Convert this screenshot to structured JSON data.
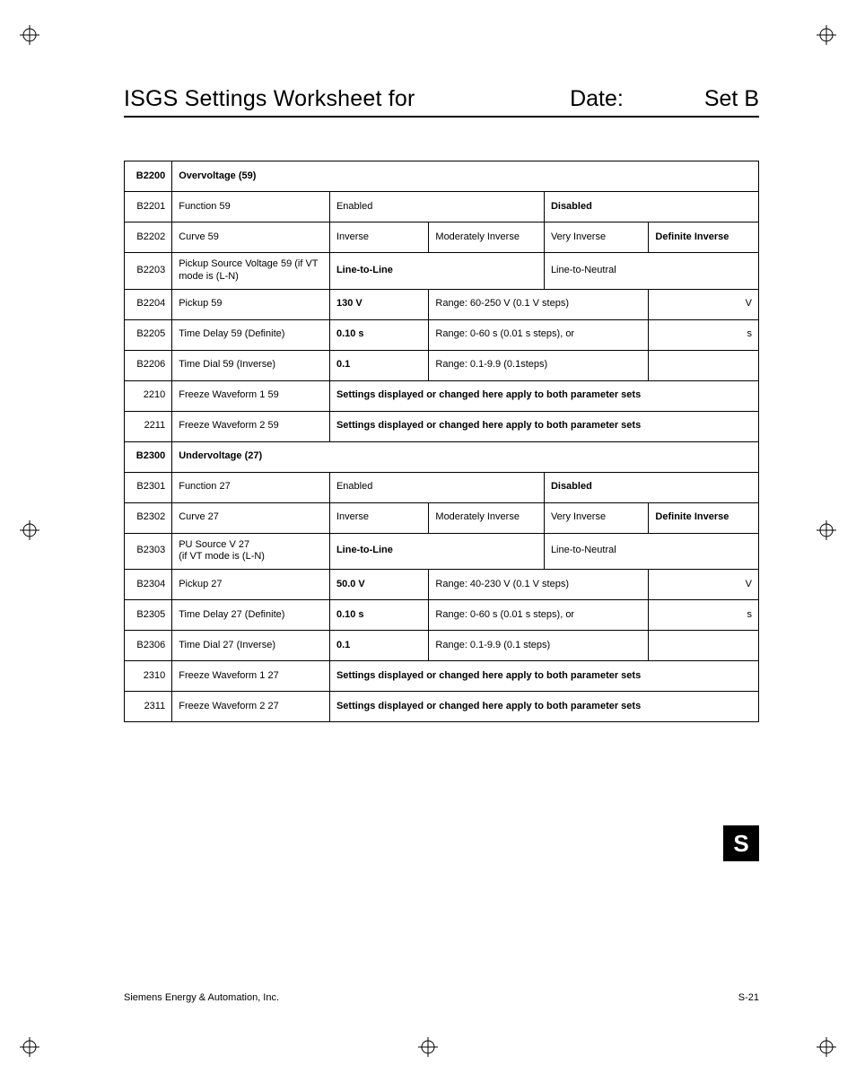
{
  "header": {
    "title": "ISGS Settings Worksheet for",
    "date_label": "Date:",
    "set_label": "Set B"
  },
  "side_tab": "S",
  "footer": {
    "left": "Siemens Energy & Automation, Inc.",
    "right": "S-21"
  },
  "sections": [
    {
      "group_code": "B2200",
      "group_title": "Overvoltage (59)",
      "rows": [
        {
          "code": "B2201",
          "name": "Function 59",
          "cells": [
            {
              "text": "Enabled",
              "span": 2
            },
            {
              "text": "Disabled",
              "bold": true,
              "span": 2
            }
          ]
        },
        {
          "code": "B2202",
          "name": "Curve 59",
          "cells": [
            {
              "text": "Inverse"
            },
            {
              "text": "Moderately Inverse"
            },
            {
              "text": "Very Inverse"
            },
            {
              "text": "Definite Inverse",
              "bold": true
            }
          ]
        },
        {
          "code": "B2203",
          "name": "Pickup  Source Voltage 59 (if VT mode is (L-N)",
          "cells": [
            {
              "text": "Line-to-Line",
              "bold": true,
              "span": 2
            },
            {
              "text": "Line-to-Neutral",
              "span": 2
            }
          ]
        },
        {
          "code": "B2204",
          "name": "Pickup 59",
          "cells": [
            {
              "text": "130 V",
              "bold": true
            },
            {
              "text": "Range:  60-250 V  (0.1 V steps)",
              "span": 2
            },
            {
              "text": "V",
              "right": true
            }
          ]
        },
        {
          "code": "B2205",
          "name": "Time Delay 59 (Definite)",
          "cells": [
            {
              "text": "0.10 s",
              "bold": true
            },
            {
              "text": "Range:  0-60 s  (0.01 s steps), or",
              "span": 2
            },
            {
              "text": "s",
              "right": true
            }
          ]
        },
        {
          "code": "B2206",
          "name": "Time Dial 59 (Inverse)",
          "cells": [
            {
              "text": "0.1",
              "bold": true
            },
            {
              "text": "Range:  0.1-9.9  (0.1steps)",
              "span": 2
            },
            {
              "text": ""
            }
          ]
        },
        {
          "code": "2210",
          "name": "Freeze Waveform 1 59",
          "cells": [
            {
              "text": "Settings displayed or changed here apply to both parameter sets",
              "bold": true,
              "span": 4
            }
          ]
        },
        {
          "code": "2211",
          "name": "Freeze Waveform 2 59",
          "cells": [
            {
              "text": "Settings displayed or changed here apply to both parameter sets",
              "bold": true,
              "span": 4
            }
          ]
        }
      ]
    },
    {
      "group_code": "B2300",
      "group_title": "Undervoltage (27)",
      "rows": [
        {
          "code": "B2301",
          "name": "Function 27",
          "cells": [
            {
              "text": "Enabled",
              "span": 2
            },
            {
              "text": "Disabled",
              "bold": true,
              "span": 2
            }
          ]
        },
        {
          "code": "B2302",
          "name": "Curve 27",
          "cells": [
            {
              "text": "Inverse"
            },
            {
              "text": "Moderately Inverse"
            },
            {
              "text": "Very Inverse"
            },
            {
              "text": "Definite Inverse",
              "bold": true
            }
          ]
        },
        {
          "code": "B2303",
          "name": "PU Source V 27\n(if VT mode is (L-N)",
          "cells": [
            {
              "text": "Line-to-Line",
              "bold": true,
              "span": 2
            },
            {
              "text": "Line-to-Neutral",
              "span": 2
            }
          ]
        },
        {
          "code": "B2304",
          "name": "Pickup 27",
          "cells": [
            {
              "text": "50.0 V",
              "bold": true
            },
            {
              "text": "Range:  40-230 V  (0.1 V steps)",
              "span": 2
            },
            {
              "text": "V",
              "right": true
            }
          ]
        },
        {
          "code": "B2305",
          "name": "Time Delay 27 (Definite)",
          "cells": [
            {
              "text": "0.10 s",
              "bold": true
            },
            {
              "text": "Range:  0-60 s (0.01 s steps), or",
              "span": 2
            },
            {
              "text": "s",
              "right": true
            }
          ]
        },
        {
          "code": "B2306",
          "name": "Time Dial 27 (Inverse)",
          "cells": [
            {
              "text": "0.1",
              "bold": true
            },
            {
              "text": "Range:  0.1-9.9  (0.1 steps)",
              "span": 2
            },
            {
              "text": ""
            }
          ]
        },
        {
          "code": "2310",
          "name": "Freeze Waveform 1 27",
          "cells": [
            {
              "text": "Settings displayed or changed here apply to both parameter sets",
              "bold": true,
              "span": 4
            }
          ]
        },
        {
          "code": "2311",
          "name": "Freeze Waveform 2 27",
          "cells": [
            {
              "text": "Settings displayed or changed here apply to both parameter sets",
              "bold": true,
              "span": 4
            }
          ]
        }
      ]
    }
  ]
}
